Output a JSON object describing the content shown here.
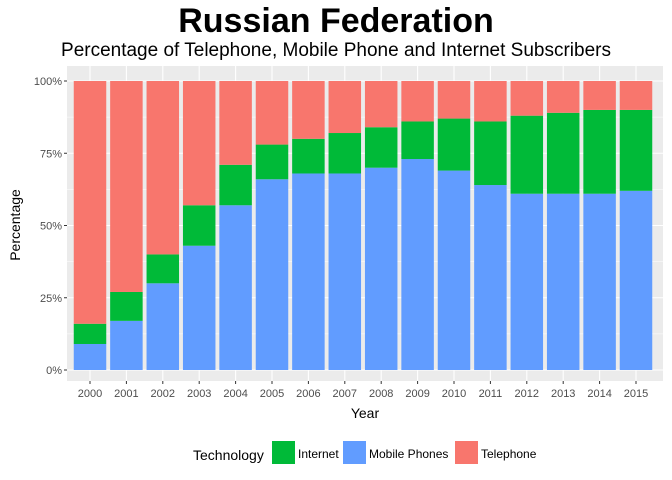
{
  "chart_data": {
    "type": "bar",
    "stacked": true,
    "title": "Russian Federation",
    "subtitle": "Percentage of Telephone, Mobile Phone and Internet Subscribers",
    "xlabel": "Year",
    "ylabel": "Percentage",
    "ylim": [
      0,
      1
    ],
    "y_ticks": [
      "0%",
      "25%",
      "50%",
      "75%",
      "100%"
    ],
    "grid": true,
    "legend_position": "bottom",
    "legend_title": "Technology",
    "categories": [
      "2000",
      "2001",
      "2002",
      "2003",
      "2004",
      "2005",
      "2006",
      "2007",
      "2008",
      "2009",
      "2010",
      "2011",
      "2012",
      "2013",
      "2014",
      "2015"
    ],
    "series": [
      {
        "name": "Mobile Phones",
        "color": "#619CFF",
        "values": [
          0.09,
          0.17,
          0.3,
          0.43,
          0.57,
          0.66,
          0.68,
          0.68,
          0.7,
          0.73,
          0.69,
          0.64,
          0.61,
          0.61,
          0.61,
          0.62
        ]
      },
      {
        "name": "Internet",
        "color": "#00BA38",
        "values": [
          0.07,
          0.1,
          0.1,
          0.14,
          0.14,
          0.12,
          0.12,
          0.14,
          0.14,
          0.13,
          0.18,
          0.22,
          0.27,
          0.28,
          0.29,
          0.28
        ]
      },
      {
        "name": "Telephone",
        "color": "#F8766D",
        "values": [
          0.84,
          0.73,
          0.6,
          0.43,
          0.29,
          0.22,
          0.2,
          0.18,
          0.16,
          0.14,
          0.13,
          0.14,
          0.12,
          0.11,
          0.1,
          0.1
        ]
      }
    ],
    "legend_order": [
      "Internet",
      "Mobile Phones",
      "Telephone"
    ]
  }
}
